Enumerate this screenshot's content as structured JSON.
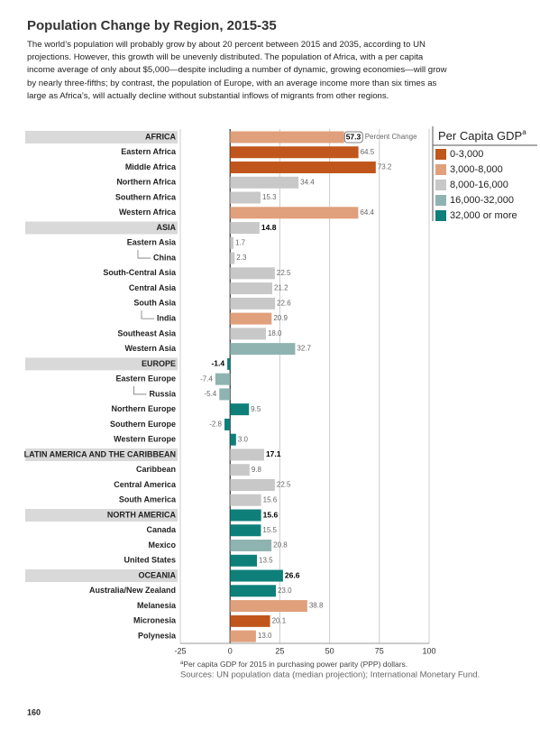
{
  "chart_data": {
    "type": "hbar",
    "title": "Population Change by Region, 2015-35",
    "subtitle": "The world’s population will probably grow by about 20 percent between 2015 and 2035, according to UN projections. However, this growth will be unevenly distributed. The population of Africa, with a per capita income average of only about $5,000—despite including a number of dynamic, growing economies—will grow by nearly three-fifths; by contrast, the population of Europe, with an average income more than six times as large as Africa’s, will actually decline without substantial inflows of migrants from other regions.",
    "annotation": "Percent Change",
    "categories": [
      "AFRICA",
      "Eastern Africa",
      "Middle Africa",
      "Northern Africa",
      "Southern Africa",
      "Western Africa",
      "ASIA",
      "Eastern Asia",
      "China",
      "South-Central Asia",
      "Central Asia",
      "South Asia",
      "India",
      "Southeast Asia",
      "Western Asia",
      "EUROPE",
      "Eastern Europe",
      "Russia",
      "Northern Europe",
      "Southern Europe",
      "Western Europe",
      "LATIN AMERICA AND THE CARIBBEAN",
      "Caribbean",
      "Central America",
      "South America",
      "NORTH AMERICA",
      "Canada",
      "Mexico",
      "United States",
      "OCEANIA",
      "Australia/New Zealand",
      "Melanesia",
      "Micronesia",
      "Polynesia"
    ],
    "levels": [
      0,
      1,
      1,
      1,
      1,
      1,
      0,
      1,
      2,
      1,
      1,
      1,
      2,
      1,
      1,
      0,
      1,
      2,
      1,
      1,
      1,
      0,
      1,
      1,
      1,
      0,
      1,
      1,
      1,
      0,
      1,
      1,
      1,
      1
    ],
    "values": [
      57.3,
      64.5,
      73.2,
      34.4,
      15.3,
      64.4,
      14.8,
      1.7,
      2.3,
      22.5,
      21.2,
      22.6,
      20.9,
      18.0,
      32.7,
      -1.4,
      -7.4,
      -5.4,
      9.5,
      -2.8,
      3.0,
      17.1,
      9.8,
      22.5,
      15.6,
      15.6,
      15.5,
      20.8,
      13.5,
      26.6,
      23.0,
      38.8,
      20.1,
      13.0
    ],
    "value_labels": [
      "57.3",
      "64.5",
      "73.2",
      "34.4",
      "15.3",
      "64.4",
      "14.8",
      "1.7",
      "2.3",
      "22.5",
      "21.2",
      "22.6",
      "20.9",
      "18.0",
      "32.7",
      "-1.4",
      "-7.4",
      "-5.4",
      "9.5",
      "-2.8",
      "3.0",
      "17.1",
      "9.8",
      "22.5",
      "15.6",
      "15.6",
      "15.5",
      "20.8",
      "13.5",
      "26.6",
      "23.0",
      "38.8",
      "20.1",
      "13.0"
    ],
    "bar_colors": [
      "#e0a07c",
      "#c0561c",
      "#c0561c",
      "#c8c8c8",
      "#c8c8c8",
      "#e0a07c",
      "#c8c8c8",
      "#c8c8c8",
      "#c8c8c8",
      "#c8c8c8",
      "#c8c8c8",
      "#c8c8c8",
      "#e0a07c",
      "#c8c8c8",
      "#8fb3b0",
      "#0f7f7a",
      "#8fb3b0",
      "#8fb3b0",
      "#0f7f7a",
      "#0f7f7a",
      "#0f7f7a",
      "#c8c8c8",
      "#c8c8c8",
      "#c8c8c8",
      "#c8c8c8",
      "#0f7f7a",
      "#0f7f7a",
      "#8fb3b0",
      "#0f7f7a",
      "#0f7f7a",
      "#0f7f7a",
      "#e0a07c",
      "#c0561c",
      "#e0a07c"
    ],
    "legend": {
      "title": "Per Capita GDP",
      "title_note": "a",
      "items": [
        {
          "name": "0-3,000",
          "color": "#c0561c"
        },
        {
          "name": "3,000-8,000",
          "color": "#e0a07c"
        },
        {
          "name": "8,000-16,000",
          "color": "#c8c8c8"
        },
        {
          "name": "16,000-32,000",
          "color": "#8fb3b0"
        },
        {
          "name": "32,000 or more",
          "color": "#0f7f7a"
        }
      ]
    },
    "xlim": [
      -25,
      100
    ],
    "xticks": [
      -25,
      0,
      25,
      50,
      75,
      100
    ],
    "grid": true,
    "footnote_marker": "a",
    "footnote": "Per capita GDP for 2015 in purchasing power parity (PPP) dollars.",
    "source": "Sources: UN population data (median projection); International Monetary Fund.",
    "page_number": "160"
  }
}
